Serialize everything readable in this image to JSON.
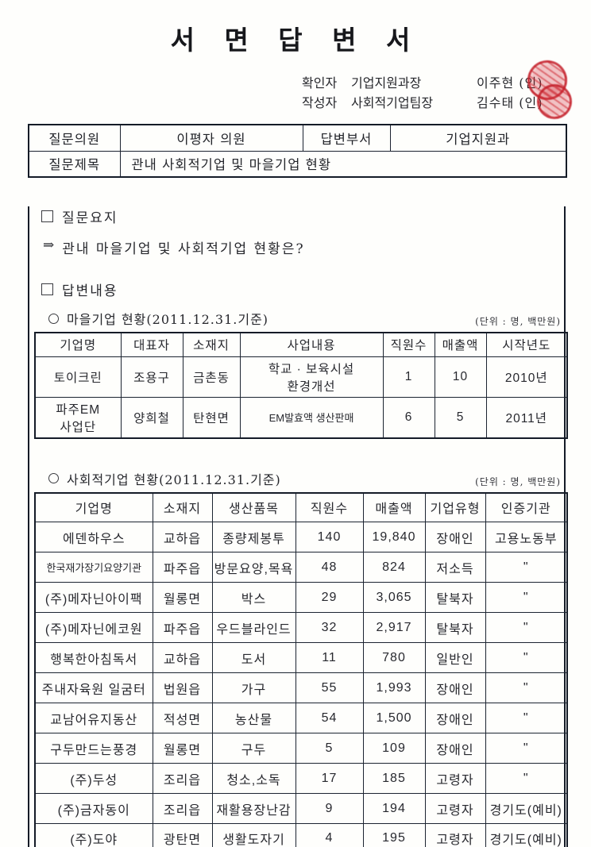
{
  "document": {
    "title": "서 면 답 변 서"
  },
  "approval": {
    "rows": [
      {
        "role": "확인자",
        "position": "기업지원과장",
        "name": "이주현",
        "seal": "(인)"
      },
      {
        "role": "작성자",
        "position": "사회적기업팀장",
        "name": "김수태",
        "seal": "(인)"
      }
    ],
    "seal_color": "#c4202a"
  },
  "header_table": {
    "question_member_label": "질문의원",
    "question_member": "이평자 의원",
    "answer_dept_label": "답변부서",
    "answer_dept": "기업지원과",
    "question_title_label": "질문제목",
    "question_title": "관내 사회적기업 및 마을기업 현황"
  },
  "question_summary": {
    "heading": "질문요지",
    "arrow": "⇒",
    "text": "관내 마을기업 및 사회적기업 현황은?"
  },
  "answer_section": {
    "heading": "답변내용"
  },
  "village_table": {
    "caption": "마을기업 현황(2011.12.31.기준)",
    "unit_note": "(단위 : 명, 백만원)",
    "headers": [
      "기업명",
      "대표자",
      "소재지",
      "사업내용",
      "직원수",
      "매출액",
      "시작년도"
    ],
    "rows": [
      [
        "토이크린",
        "조용구",
        "금촌동",
        "학교 · 보육시설\n환경개선",
        "1",
        "10",
        "2010년"
      ],
      [
        "파주EM\n사업단",
        "양희철",
        "탄현면",
        "EM발효액 생산판매",
        "6",
        "5",
        "2011년"
      ]
    ]
  },
  "social_table": {
    "caption": "사회적기업 현황(2011.12.31.기준)",
    "unit_note": "(단위 : 명, 백만원)",
    "headers": [
      "기업명",
      "소재지",
      "생산품목",
      "직원수",
      "매출액",
      "기업유형",
      "인증기관"
    ],
    "rows": [
      [
        "에덴하우스",
        "교하읍",
        "종량제봉투",
        "140",
        "19,840",
        "장애인",
        "고용노동부"
      ],
      [
        "한국재가장기요양기관",
        "파주읍",
        "방문요양,목욕",
        "48",
        "824",
        "저소득",
        "\""
      ],
      [
        "(주)메자닌아이팩",
        "월롱면",
        "박스",
        "29",
        "3,065",
        "탈북자",
        "\""
      ],
      [
        "(주)메자닌에코원",
        "파주읍",
        "우드블라인드",
        "32",
        "2,917",
        "탈북자",
        "\""
      ],
      [
        "행복한아침독서",
        "교하읍",
        "도서",
        "11",
        "780",
        "일반인",
        "\""
      ],
      [
        "주내자육원 일굼터",
        "법원읍",
        "가구",
        "55",
        "1,993",
        "장애인",
        "\""
      ],
      [
        "교남어유지동산",
        "적성면",
        "농산물",
        "54",
        "1,500",
        "장애인",
        "\""
      ],
      [
        "구두만드는풍경",
        "월롱면",
        "구두",
        "5",
        "109",
        "장애인",
        "\""
      ],
      [
        "(주)두성",
        "조리읍",
        "청소,소독",
        "17",
        "185",
        "고령자",
        "\""
      ],
      [
        "(주)금자동이",
        "조리읍",
        "재활용장난감",
        "9",
        "194",
        "고령자",
        "경기도(예비)"
      ],
      [
        "(주)도야",
        "광탄면",
        "생활도자기",
        "4",
        "195",
        "고령자",
        "경기도(예비)"
      ]
    ]
  }
}
